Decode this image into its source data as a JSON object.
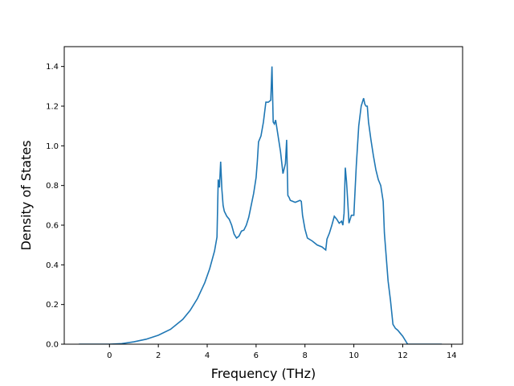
{
  "chart_data": {
    "type": "line",
    "title": "",
    "xlabel": "Frequency (THz)",
    "ylabel": "Density of States",
    "xlim": [
      -1.85,
      14.45
    ],
    "ylim": [
      0,
      1.5
    ],
    "xticks": [
      0,
      2,
      4,
      6,
      8,
      10,
      12,
      14
    ],
    "yticks": [
      0.0,
      0.2,
      0.4,
      0.6,
      0.8,
      1.0,
      1.2,
      1.4
    ],
    "xtick_labels": [
      "0",
      "2",
      "4",
      "6",
      "8",
      "10",
      "12",
      "14"
    ],
    "ytick_labels": [
      "0.0",
      "0.2",
      "0.4",
      "0.6",
      "0.8",
      "1.0",
      "1.2",
      "1.4"
    ],
    "grid": false,
    "legend": "none",
    "series": [
      {
        "color": "#1f77b4",
        "x": [
          -1.25,
          -0.5,
          0.0,
          0.5,
          1.0,
          1.5,
          2.0,
          2.5,
          3.0,
          3.3,
          3.6,
          3.9,
          4.1,
          4.3,
          4.4,
          4.45,
          4.5,
          4.55,
          4.6,
          4.65,
          4.7,
          4.8,
          4.9,
          5.0,
          5.1,
          5.2,
          5.3,
          5.4,
          5.5,
          5.6,
          5.7,
          5.8,
          5.9,
          6.0,
          6.05,
          6.1,
          6.2,
          6.3,
          6.4,
          6.5,
          6.6,
          6.65,
          6.7,
          6.75,
          6.8,
          6.9,
          7.0,
          7.1,
          7.2,
          7.25,
          7.3,
          7.35,
          7.4,
          7.5,
          7.6,
          7.7,
          7.8,
          7.85,
          7.9,
          8.0,
          8.1,
          8.3,
          8.5,
          8.7,
          8.8,
          8.85,
          8.9,
          9.0,
          9.1,
          9.2,
          9.3,
          9.4,
          9.5,
          9.55,
          9.6,
          9.65,
          9.7,
          9.75,
          9.8,
          9.9,
          10.0,
          10.1,
          10.2,
          10.3,
          10.4,
          10.45,
          10.5,
          10.55,
          10.6,
          10.7,
          10.8,
          10.9,
          11.0,
          11.1,
          11.2,
          11.25,
          11.3,
          11.4,
          11.5,
          11.6,
          11.7,
          11.8,
          11.9,
          12.0,
          12.1,
          12.2,
          12.3,
          12.4,
          12.5,
          13.0,
          13.6
        ],
        "y": [
          0.0,
          0.0,
          0.0,
          0.003,
          0.012,
          0.025,
          0.045,
          0.075,
          0.125,
          0.17,
          0.23,
          0.31,
          0.38,
          0.47,
          0.54,
          0.83,
          0.79,
          0.92,
          0.78,
          0.7,
          0.67,
          0.645,
          0.63,
          0.6,
          0.555,
          0.535,
          0.545,
          0.57,
          0.575,
          0.6,
          0.64,
          0.7,
          0.76,
          0.84,
          0.92,
          1.02,
          1.05,
          1.12,
          1.22,
          1.22,
          1.23,
          1.4,
          1.12,
          1.11,
          1.13,
          1.05,
          0.97,
          0.86,
          0.91,
          1.03,
          0.75,
          0.74,
          0.725,
          0.72,
          0.715,
          0.72,
          0.725,
          0.72,
          0.65,
          0.58,
          0.535,
          0.52,
          0.5,
          0.49,
          0.48,
          0.475,
          0.53,
          0.56,
          0.6,
          0.645,
          0.63,
          0.61,
          0.62,
          0.6,
          0.66,
          0.89,
          0.82,
          0.72,
          0.61,
          0.65,
          0.65,
          0.9,
          1.1,
          1.2,
          1.24,
          1.21,
          1.2,
          1.2,
          1.12,
          1.03,
          0.95,
          0.88,
          0.83,
          0.8,
          0.72,
          0.56,
          0.48,
          0.32,
          0.22,
          0.1,
          0.08,
          0.07,
          0.055,
          0.04,
          0.02,
          0.0,
          0.0,
          0.0,
          0.0,
          0.0,
          0.0
        ]
      }
    ]
  }
}
